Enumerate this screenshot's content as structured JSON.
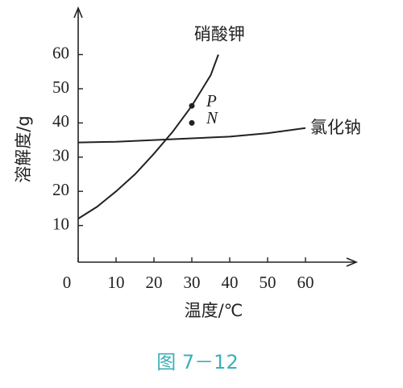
{
  "chart_data": {
    "type": "line",
    "y_label": "溶解度/g",
    "x_label": "温度/℃",
    "caption": "图 7－12",
    "series": [
      {
        "name": "硝酸钾",
        "color": "#222222",
        "x": [
          0,
          5,
          10,
          15,
          20,
          25,
          30,
          35,
          37
        ],
        "values": [
          12,
          15.5,
          20,
          25,
          31,
          37.5,
          45,
          54,
          60
        ]
      },
      {
        "name": "氯化钠",
        "color": "#222222",
        "x": [
          0,
          10,
          20,
          30,
          40,
          50,
          60
        ],
        "values": [
          34.3,
          34.5,
          35,
          35.5,
          36,
          37,
          38.5
        ]
      }
    ],
    "points": [
      {
        "label": "P",
        "x": 30,
        "y": 45
      },
      {
        "label": "N",
        "x": 30,
        "y": 40
      }
    ],
    "xlim": [
      0,
      73
    ],
    "ylim": [
      0,
      72
    ],
    "xticks": [
      0,
      10,
      20,
      30,
      40,
      50,
      60
    ],
    "yticks": [
      10,
      20,
      30,
      40,
      50,
      60
    ]
  }
}
